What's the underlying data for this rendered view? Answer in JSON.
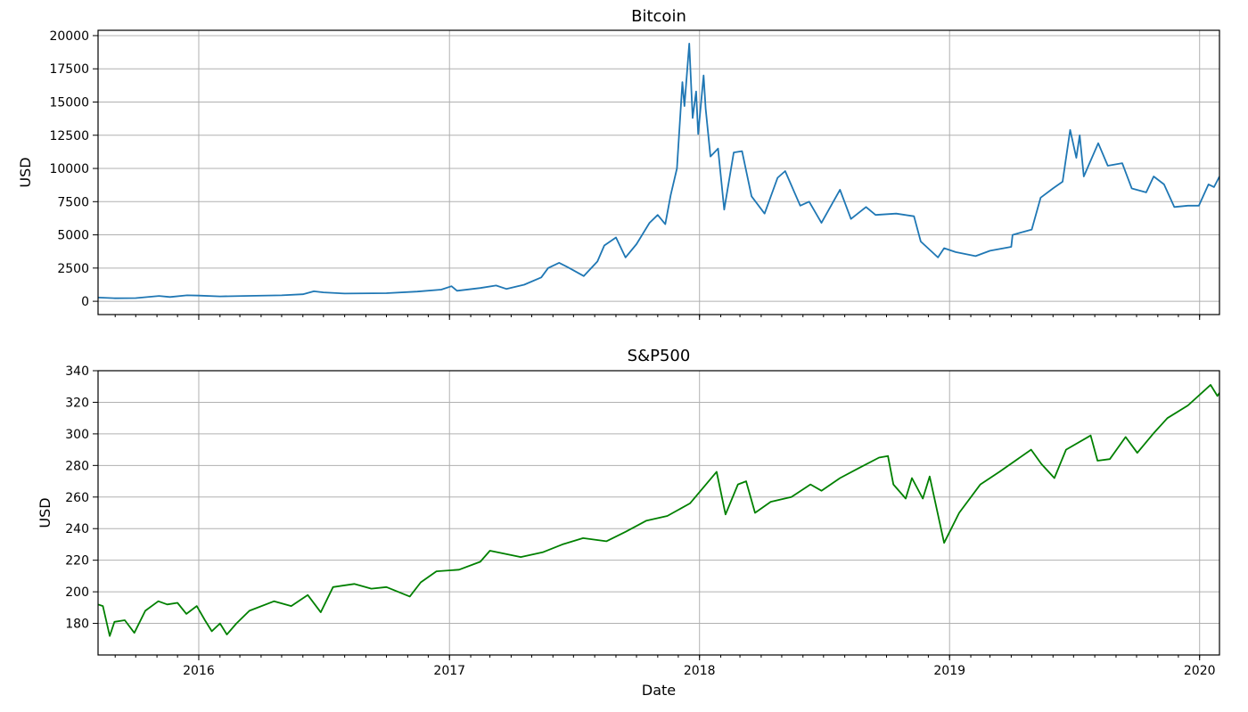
{
  "chart_data": [
    {
      "type": "line",
      "title": "Bitcoin",
      "ylabel": "USD",
      "xlabel": "",
      "ylim": [
        -1000,
        20400
      ],
      "xlim": [
        "2015-08-07",
        "2020-01-30"
      ],
      "grid": true,
      "yticks": [
        0,
        2500,
        5000,
        7500,
        10000,
        12500,
        15000,
        17500,
        20000
      ],
      "xticks": [
        {
          "date": "2016-01-01",
          "label": "2016"
        },
        {
          "date": "2017-01-01",
          "label": "2017"
        },
        {
          "date": "2018-01-01",
          "label": "2018"
        },
        {
          "date": "2019-01-01",
          "label": "2019"
        },
        {
          "date": "2020-01-01",
          "label": "2020"
        }
      ],
      "show_xtick_labels": false,
      "series": [
        {
          "color": "#1f77b4",
          "points": [
            [
              "2015-08-07",
              280
            ],
            [
              "2015-09-01",
              230
            ],
            [
              "2015-10-01",
              240
            ],
            [
              "2015-11-04",
              400
            ],
            [
              "2015-11-20",
              320
            ],
            [
              "2015-12-15",
              450
            ],
            [
              "2016-01-01",
              430
            ],
            [
              "2016-02-01",
              370
            ],
            [
              "2016-03-15",
              410
            ],
            [
              "2016-05-01",
              450
            ],
            [
              "2016-06-01",
              530
            ],
            [
              "2016-06-17",
              750
            ],
            [
              "2016-07-01",
              670
            ],
            [
              "2016-08-01",
              580
            ],
            [
              "2016-10-01",
              610
            ],
            [
              "2016-11-15",
              730
            ],
            [
              "2016-12-20",
              880
            ],
            [
              "2017-01-04",
              1130
            ],
            [
              "2017-01-12",
              790
            ],
            [
              "2017-02-15",
              1000
            ],
            [
              "2017-03-10",
              1190
            ],
            [
              "2017-03-25",
              930
            ],
            [
              "2017-04-20",
              1250
            ],
            [
              "2017-05-15",
              1800
            ],
            [
              "2017-05-25",
              2500
            ],
            [
              "2017-06-10",
              2900
            ],
            [
              "2017-06-25",
              2500
            ],
            [
              "2017-07-16",
              1900
            ],
            [
              "2017-08-05",
              3000
            ],
            [
              "2017-08-15",
              4200
            ],
            [
              "2017-09-01",
              4800
            ],
            [
              "2017-09-15",
              3300
            ],
            [
              "2017-10-01",
              4300
            ],
            [
              "2017-10-20",
              5900
            ],
            [
              "2017-11-01",
              6500
            ],
            [
              "2017-11-12",
              5800
            ],
            [
              "2017-11-20",
              8000
            ],
            [
              "2017-11-29",
              10000
            ],
            [
              "2017-12-07",
              16500
            ],
            [
              "2017-12-10",
              14700
            ],
            [
              "2017-12-17",
              19400
            ],
            [
              "2017-12-22",
              13800
            ],
            [
              "2017-12-27",
              15800
            ],
            [
              "2017-12-30",
              12600
            ],
            [
              "2018-01-07",
              17000
            ],
            [
              "2018-01-10",
              14500
            ],
            [
              "2018-01-17",
              10900
            ],
            [
              "2018-01-28",
              11500
            ],
            [
              "2018-02-06",
              6900
            ],
            [
              "2018-02-20",
              11200
            ],
            [
              "2018-03-04",
              11300
            ],
            [
              "2018-03-18",
              7900
            ],
            [
              "2018-04-06",
              6600
            ],
            [
              "2018-04-25",
              9300
            ],
            [
              "2018-05-06",
              9800
            ],
            [
              "2018-05-28",
              7200
            ],
            [
              "2018-06-10",
              7500
            ],
            [
              "2018-06-28",
              5900
            ],
            [
              "2018-07-25",
              8400
            ],
            [
              "2018-08-10",
              6200
            ],
            [
              "2018-09-01",
              7100
            ],
            [
              "2018-09-15",
              6500
            ],
            [
              "2018-10-15",
              6600
            ],
            [
              "2018-11-10",
              6400
            ],
            [
              "2018-11-20",
              4500
            ],
            [
              "2018-12-15",
              3300
            ],
            [
              "2018-12-24",
              4000
            ],
            [
              "2019-01-10",
              3700
            ],
            [
              "2019-02-08",
              3400
            ],
            [
              "2019-03-01",
              3800
            ],
            [
              "2019-04-01",
              4100
            ],
            [
              "2019-04-03",
              5000
            ],
            [
              "2019-05-01",
              5400
            ],
            [
              "2019-05-14",
              7800
            ],
            [
              "2019-06-01",
              8500
            ],
            [
              "2019-06-15",
              9000
            ],
            [
              "2019-06-26",
              12900
            ],
            [
              "2019-07-05",
              10800
            ],
            [
              "2019-07-10",
              12500
            ],
            [
              "2019-07-16",
              9400
            ],
            [
              "2019-08-06",
              11900
            ],
            [
              "2019-08-20",
              10200
            ],
            [
              "2019-09-10",
              10400
            ],
            [
              "2019-09-24",
              8500
            ],
            [
              "2019-10-15",
              8200
            ],
            [
              "2019-10-26",
              9400
            ],
            [
              "2019-11-10",
              8800
            ],
            [
              "2019-11-25",
              7100
            ],
            [
              "2019-12-15",
              7200
            ],
            [
              "2019-12-31",
              7200
            ],
            [
              "2020-01-14",
              8800
            ],
            [
              "2020-01-22",
              8600
            ],
            [
              "2020-01-30",
              9400
            ]
          ]
        }
      ]
    },
    {
      "type": "line",
      "title": "S&P500",
      "ylabel": "USD",
      "xlabel": "Date",
      "ylim": [
        160,
        340
      ],
      "xlim": [
        "2015-08-07",
        "2020-01-30"
      ],
      "grid": true,
      "yticks": [
        180,
        200,
        220,
        240,
        260,
        280,
        300,
        320,
        340
      ],
      "xticks": [
        {
          "date": "2016-01-01",
          "label": "2016"
        },
        {
          "date": "2017-01-01",
          "label": "2017"
        },
        {
          "date": "2018-01-01",
          "label": "2018"
        },
        {
          "date": "2019-01-01",
          "label": "2019"
        },
        {
          "date": "2020-01-01",
          "label": "2020"
        }
      ],
      "show_xtick_labels": true,
      "series": [
        {
          "color": "#008000",
          "points": [
            [
              "2015-08-07",
              192
            ],
            [
              "2015-08-14",
              191
            ],
            [
              "2015-08-24",
              172
            ],
            [
              "2015-08-31",
              181
            ],
            [
              "2015-09-15",
              182
            ],
            [
              "2015-09-29",
              174
            ],
            [
              "2015-10-15",
              188
            ],
            [
              "2015-11-03",
              194
            ],
            [
              "2015-11-16",
              192
            ],
            [
              "2015-12-01",
              193
            ],
            [
              "2015-12-14",
              186
            ],
            [
              "2015-12-29",
              191
            ],
            [
              "2016-01-10",
              182
            ],
            [
              "2016-01-20",
              175
            ],
            [
              "2016-02-01",
              180
            ],
            [
              "2016-02-11",
              173
            ],
            [
              "2016-02-25",
              180
            ],
            [
              "2016-03-15",
              188
            ],
            [
              "2016-04-20",
              194
            ],
            [
              "2016-05-15",
              191
            ],
            [
              "2016-06-08",
              198
            ],
            [
              "2016-06-27",
              187
            ],
            [
              "2016-07-15",
              203
            ],
            [
              "2016-08-15",
              205
            ],
            [
              "2016-09-09",
              202
            ],
            [
              "2016-10-01",
              203
            ],
            [
              "2016-11-04",
              197
            ],
            [
              "2016-11-20",
              206
            ],
            [
              "2016-12-13",
              213
            ],
            [
              "2017-01-15",
              214
            ],
            [
              "2017-02-15",
              219
            ],
            [
              "2017-03-01",
              226
            ],
            [
              "2017-04-15",
              222
            ],
            [
              "2017-05-17",
              225
            ],
            [
              "2017-06-15",
              230
            ],
            [
              "2017-07-15",
              234
            ],
            [
              "2017-08-18",
              232
            ],
            [
              "2017-09-15",
              238
            ],
            [
              "2017-10-15",
              245
            ],
            [
              "2017-11-15",
              248
            ],
            [
              "2017-12-18",
              256
            ],
            [
              "2018-01-26",
              276
            ],
            [
              "2018-02-08",
              249
            ],
            [
              "2018-02-26",
              268
            ],
            [
              "2018-03-10",
              270
            ],
            [
              "2018-03-23",
              250
            ],
            [
              "2018-04-15",
              257
            ],
            [
              "2018-05-15",
              260
            ],
            [
              "2018-06-12",
              268
            ],
            [
              "2018-06-28",
              264
            ],
            [
              "2018-07-25",
              272
            ],
            [
              "2018-08-20",
              278
            ],
            [
              "2018-09-20",
              285
            ],
            [
              "2018-10-03",
              286
            ],
            [
              "2018-10-11",
              268
            ],
            [
              "2018-10-29",
              259
            ],
            [
              "2018-11-07",
              272
            ],
            [
              "2018-11-23",
              259
            ],
            [
              "2018-12-03",
              273
            ],
            [
              "2018-12-24",
              231
            ],
            [
              "2019-01-15",
              250
            ],
            [
              "2019-02-15",
              268
            ],
            [
              "2019-03-15",
              276
            ],
            [
              "2019-04-30",
              290
            ],
            [
              "2019-05-15",
              281
            ],
            [
              "2019-06-03",
              272
            ],
            [
              "2019-06-20",
              290
            ],
            [
              "2019-07-26",
              299
            ],
            [
              "2019-08-05",
              283
            ],
            [
              "2019-08-23",
              284
            ],
            [
              "2019-09-15",
              298
            ],
            [
              "2019-10-02",
              288
            ],
            [
              "2019-10-25",
              300
            ],
            [
              "2019-11-15",
              310
            ],
            [
              "2019-12-15",
              318
            ],
            [
              "2020-01-17",
              331
            ],
            [
              "2020-01-27",
              324
            ],
            [
              "2020-01-30",
              326
            ]
          ]
        }
      ]
    }
  ]
}
